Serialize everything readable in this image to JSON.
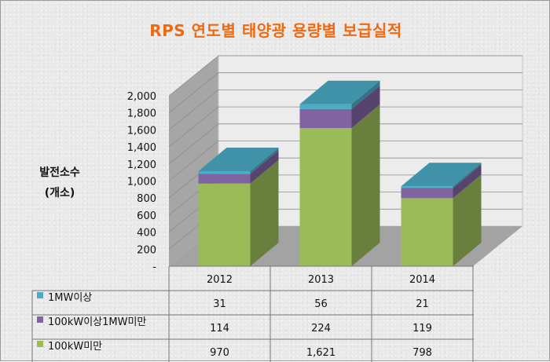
{
  "title": "RPS 연도별 태양광 용량별 보급실적",
  "ylabel_line1": "발전소수",
  "ylabel_line2": "(개소)",
  "chart_data": {
    "type": "bar",
    "stacked": true,
    "style": "3d",
    "categories": [
      "2012",
      "2013",
      "2014"
    ],
    "series": [
      {
        "name": "100kW미만",
        "color": "#9bbb59",
        "values": [
          970,
          1621,
          798
        ],
        "labels": [
          "970",
          "1,621",
          "798"
        ]
      },
      {
        "name": "100kW이상1MW미만",
        "color": "#8064a2",
        "values": [
          114,
          224,
          119
        ],
        "labels": [
          "114",
          "224",
          "119"
        ]
      },
      {
        "name": "1MW이상",
        "color": "#4bacc6",
        "values": [
          31,
          56,
          21
        ],
        "labels": [
          "31",
          "56",
          "21"
        ]
      }
    ],
    "table_order": [
      2,
      1,
      0
    ],
    "yticks": [
      "-",
      "200",
      "400",
      "600",
      "800",
      "1,000",
      "1,200",
      "1,400",
      "1,600",
      "1,800",
      "2,000"
    ],
    "ylim": [
      0,
      2000
    ],
    "grid": true,
    "legend": "data-table"
  }
}
